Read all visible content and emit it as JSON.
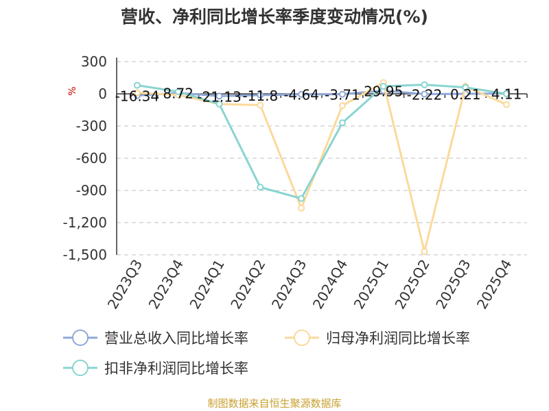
{
  "chart_data": {
    "type": "line",
    "title": "营收、净利同比增长率季度变动情况(%)",
    "xlabel": "",
    "ylabel": "%",
    "categories": [
      "2023Q3",
      "2023Q4",
      "2024Q1",
      "2024Q2",
      "2024Q3",
      "2024Q4",
      "2025Q1",
      "2025Q2",
      "2025Q3",
      "2025Q4"
    ],
    "ylim": [
      -1500,
      300
    ],
    "yticks": [
      300,
      0,
      -300,
      -600,
      -900,
      -1200,
      -1500
    ],
    "ytick_labels": [
      "300",
      "0",
      "-300",
      "-600",
      "-900",
      "-1,200",
      "-1,500"
    ],
    "grid": true,
    "legend_position": "bottom",
    "series": [
      {
        "name": "营业总收入同比增长率",
        "color": "#8fa8d8",
        "values": [
          -16.34,
          8.72,
          -21.13,
          -11.8,
          -4.64,
          -3.71,
          29.95,
          -2.22,
          0.21,
          4.11
        ],
        "data_labels": [
          "-16.34",
          "8.72",
          "-21.13",
          "-11.8",
          "-4.64",
          "-3.71",
          "29.95",
          "-2.22",
          "0.21",
          "4.11"
        ]
      },
      {
        "name": "归母净利润同比增长率",
        "color": "#fbd99a",
        "values": [
          10,
          -10,
          -95,
          -105,
          -1065,
          -110,
          105,
          -1470,
          70,
          -100
        ]
      },
      {
        "name": "扣非净利润同比增长率",
        "color": "#88d4d0",
        "values": [
          80,
          20,
          -95,
          -870,
          -975,
          -270,
          70,
          85,
          60,
          0
        ]
      }
    ]
  },
  "source_note": "制图数据来自恒生聚源数据库"
}
